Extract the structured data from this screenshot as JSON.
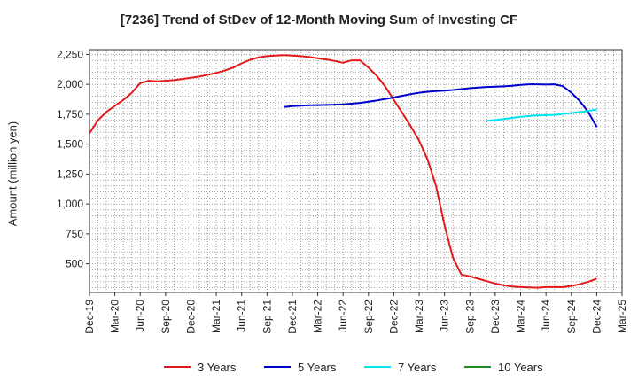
{
  "title": "[7236]  Trend of StDev of 12-Month Moving Sum of Investing CF",
  "chart_data": {
    "type": "line",
    "title": "[7236]  Trend of StDev of 12-Month Moving Sum of Investing CF",
    "xlabel": "",
    "ylabel": "Amount (million yen)",
    "y_ticks": [
      "500",
      "750",
      "1,000",
      "1,250",
      "1,500",
      "1,750",
      "2,000",
      "2,250"
    ],
    "y_tick_values": [
      500,
      750,
      1000,
      1250,
      1500,
      1750,
      2000,
      2250
    ],
    "ylim": [
      260,
      2290
    ],
    "x_ticks": [
      "Dec-19",
      "Mar-20",
      "Jun-20",
      "Sep-20",
      "Dec-20",
      "Mar-21",
      "Jun-21",
      "Sep-21",
      "Dec-21",
      "Mar-22",
      "Jun-22",
      "Sep-22",
      "Dec-22",
      "Mar-23",
      "Jun-23",
      "Sep-23",
      "Dec-23",
      "Mar-24",
      "Jun-24",
      "Sep-24",
      "Dec-24",
      "Mar-25"
    ],
    "xlim": [
      "Dec-19",
      "Mar-25"
    ],
    "grid": true,
    "legend_position": "bottom",
    "series": [
      {
        "name": "3 Years",
        "color": "#e31a1c",
        "points": [
          [
            "Dec-19",
            1590
          ],
          [
            "Jan-20",
            1700
          ],
          [
            "Feb-20",
            1770
          ],
          [
            "Mar-20",
            1820
          ],
          [
            "Apr-20",
            1870
          ],
          [
            "May-20",
            1930
          ],
          [
            "Jun-20",
            2010
          ],
          [
            "Jul-20",
            2030
          ],
          [
            "Aug-20",
            2025
          ],
          [
            "Sep-20",
            2030
          ],
          [
            "Oct-20",
            2035
          ],
          [
            "Nov-20",
            2045
          ],
          [
            "Dec-20",
            2055
          ],
          [
            "Jan-21",
            2065
          ],
          [
            "Feb-21",
            2080
          ],
          [
            "Mar-21",
            2095
          ],
          [
            "Apr-21",
            2115
          ],
          [
            "May-21",
            2140
          ],
          [
            "Jun-21",
            2175
          ],
          [
            "Jul-21",
            2205
          ],
          [
            "Aug-21",
            2225
          ],
          [
            "Sep-21",
            2235
          ],
          [
            "Oct-21",
            2240
          ],
          [
            "Nov-21",
            2243
          ],
          [
            "Dec-21",
            2240
          ],
          [
            "Jan-22",
            2235
          ],
          [
            "Feb-22",
            2228
          ],
          [
            "Mar-22",
            2218
          ],
          [
            "Apr-22",
            2208
          ],
          [
            "May-22",
            2195
          ],
          [
            "Jun-22",
            2180
          ],
          [
            "Jul-22",
            2200
          ],
          [
            "Aug-22",
            2200
          ],
          [
            "Sep-22",
            2140
          ],
          [
            "Oct-22",
            2070
          ],
          [
            "Nov-22",
            1980
          ],
          [
            "Dec-22",
            1870
          ],
          [
            "Jan-23",
            1760
          ],
          [
            "Feb-23",
            1650
          ],
          [
            "Mar-23",
            1530
          ],
          [
            "Apr-23",
            1370
          ],
          [
            "May-23",
            1150
          ],
          [
            "Jun-23",
            820
          ],
          [
            "Jul-23",
            550
          ],
          [
            "Aug-23",
            410
          ],
          [
            "Sep-23",
            395
          ],
          [
            "Oct-23",
            375
          ],
          [
            "Nov-23",
            355
          ],
          [
            "Dec-23",
            335
          ],
          [
            "Jan-24",
            320
          ],
          [
            "Feb-24",
            310
          ],
          [
            "Mar-24",
            305
          ],
          [
            "Apr-24",
            302
          ],
          [
            "May-24",
            300
          ],
          [
            "Jun-24",
            305
          ],
          [
            "Jul-24",
            305
          ],
          [
            "Aug-24",
            305
          ],
          [
            "Sep-24",
            315
          ],
          [
            "Oct-24",
            330
          ],
          [
            "Nov-24",
            350
          ],
          [
            "Dec-24",
            375
          ]
        ]
      },
      {
        "name": "5 Years",
        "color": "#0000cc",
        "points": [
          [
            "Nov-21",
            1810
          ],
          [
            "Dec-21",
            1818
          ],
          [
            "Jan-22",
            1822
          ],
          [
            "Feb-22",
            1825
          ],
          [
            "Mar-22",
            1826
          ],
          [
            "Apr-22",
            1828
          ],
          [
            "May-22",
            1830
          ],
          [
            "Jun-22",
            1833
          ],
          [
            "Jul-22",
            1838
          ],
          [
            "Aug-22",
            1845
          ],
          [
            "Sep-22",
            1855
          ],
          [
            "Oct-22",
            1865
          ],
          [
            "Nov-22",
            1878
          ],
          [
            "Dec-22",
            1890
          ],
          [
            "Jan-23",
            1905
          ],
          [
            "Feb-23",
            1918
          ],
          [
            "Mar-23",
            1930
          ],
          [
            "Apr-23",
            1938
          ],
          [
            "May-23",
            1943
          ],
          [
            "Jun-23",
            1948
          ],
          [
            "Jul-23",
            1953
          ],
          [
            "Aug-23",
            1960
          ],
          [
            "Sep-23",
            1968
          ],
          [
            "Oct-23",
            1974
          ],
          [
            "Nov-23",
            1978
          ],
          [
            "Dec-23",
            1980
          ],
          [
            "Jan-24",
            1983
          ],
          [
            "Feb-24",
            1988
          ],
          [
            "Mar-24",
            1995
          ],
          [
            "Apr-24",
            2000
          ],
          [
            "May-24",
            2000
          ],
          [
            "Jun-24",
            1998
          ],
          [
            "Jul-24",
            2000
          ],
          [
            "Aug-24",
            1985
          ],
          [
            "Sep-24",
            1930
          ],
          [
            "Oct-24",
            1860
          ],
          [
            "Nov-24",
            1770
          ],
          [
            "Dec-24",
            1645
          ]
        ]
      },
      {
        "name": "7 Years",
        "color": "#00e5ee",
        "points": [
          [
            "Nov-23",
            1695
          ],
          [
            "Dec-23",
            1702
          ],
          [
            "Jan-24",
            1710
          ],
          [
            "Feb-24",
            1720
          ],
          [
            "Mar-24",
            1728
          ],
          [
            "Apr-24",
            1735
          ],
          [
            "May-24",
            1740
          ],
          [
            "Jun-24",
            1742
          ],
          [
            "Jul-24",
            1745
          ],
          [
            "Aug-24",
            1752
          ],
          [
            "Sep-24",
            1760
          ],
          [
            "Oct-24",
            1768
          ],
          [
            "Nov-24",
            1778
          ],
          [
            "Dec-24",
            1790
          ]
        ]
      },
      {
        "name": "10 Years",
        "color": "#228b22",
        "points": []
      }
    ]
  }
}
